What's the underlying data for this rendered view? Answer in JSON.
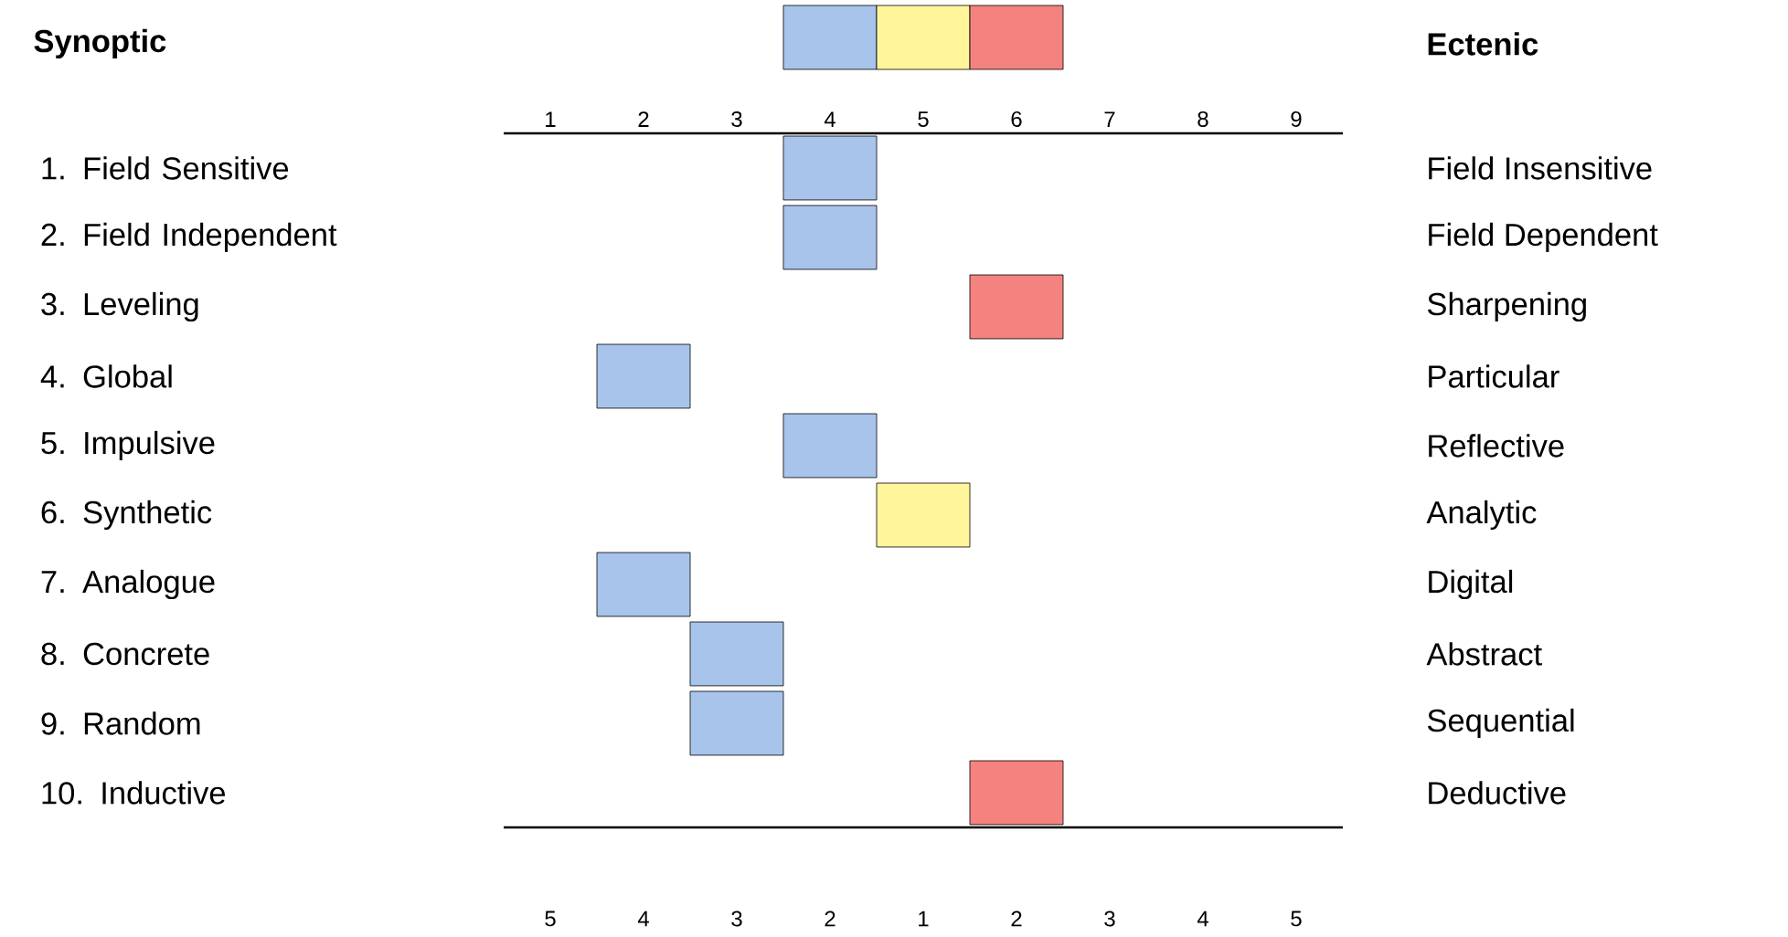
{
  "chart_data": {
    "type": "bar",
    "orientation": "horizontal",
    "categories": [
      "1. Field Sensitive",
      "2. Field Independent",
      "3. Leveling",
      "4. Global",
      "5. Impulsive",
      "6. Synthetic",
      "7. Analogue",
      "8. Concrete",
      "9. Random",
      "10. Inductive"
    ],
    "base": [
      3.5,
      3.5,
      5.5,
      1.5,
      3.5,
      4.5,
      1.5,
      2.5,
      2.5,
      5.5
    ],
    "values": [
      1,
      1,
      1,
      1,
      1,
      1,
      1,
      1,
      1,
      1
    ],
    "colors": [
      "#a9c4eb",
      "#a9c4eb",
      "#f4827f",
      "#a9c4eb",
      "#a9c4eb",
      "#fff59a",
      "#a9c4eb",
      "#a9c4eb",
      "#a9c4eb",
      "#f4827f"
    ],
    "xlim": [
      0.5,
      9.5
    ],
    "xticks": [
      1,
      2,
      3,
      4,
      5,
      6,
      7,
      8,
      9
    ],
    "annotations": [
      "Synoptic",
      "Ectenic",
      "Field Insensitive",
      "Field Dependent",
      "Sharpening",
      "Particular",
      "Reflective",
      "Analytic",
      "Digital",
      "Abstract",
      "Sequential",
      "Deductive",
      "5",
      "4",
      "3",
      "2",
      "1",
      "2",
      "3",
      "4",
      "5"
    ]
  }
}
